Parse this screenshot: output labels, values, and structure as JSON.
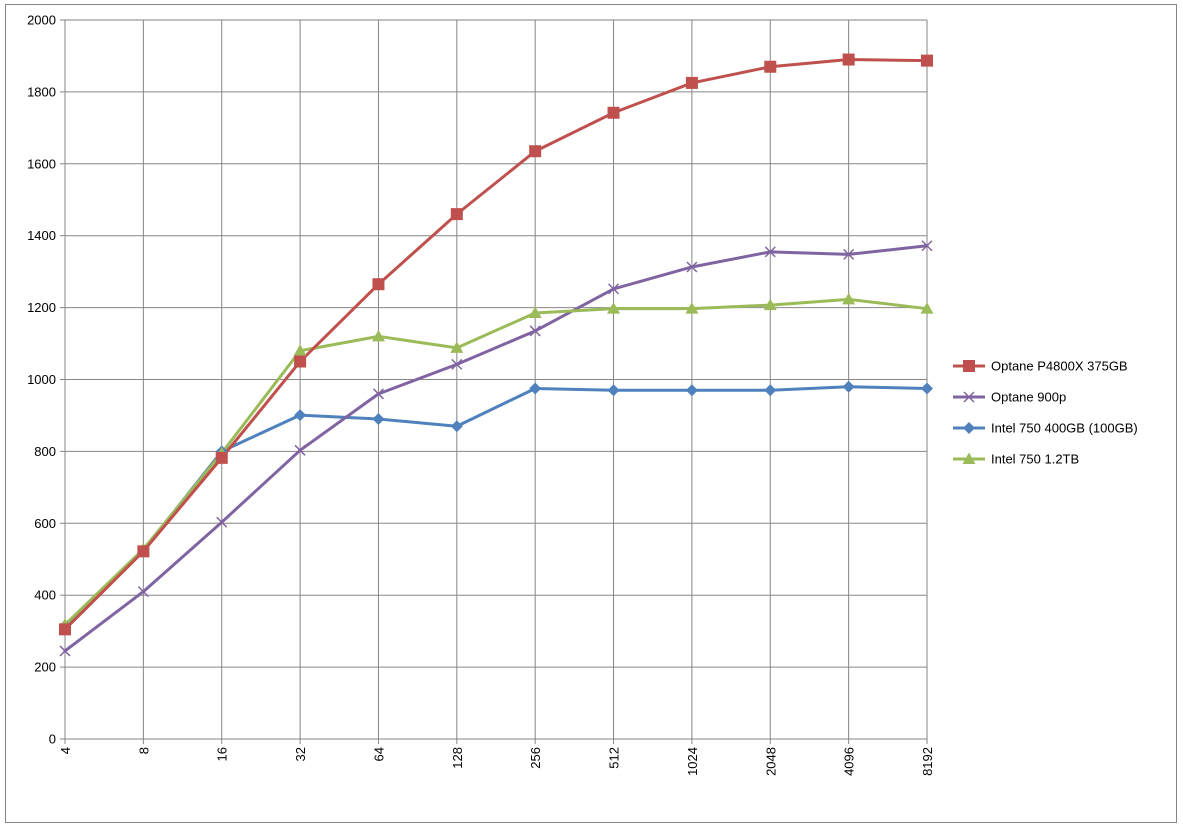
{
  "chart_data": {
    "type": "line",
    "x": [
      "4",
      "8",
      "16",
      "32",
      "64",
      "128",
      "256",
      "512",
      "1024",
      "2048",
      "4096",
      "8192"
    ],
    "ylim": [
      0,
      2000
    ],
    "yticks": [
      0,
      200,
      400,
      600,
      800,
      1000,
      1200,
      1400,
      1600,
      1800,
      2000
    ],
    "grid": true,
    "legend_position": "right",
    "series": [
      {
        "name": "Optane P4800X 375GB",
        "color": "#c0504d",
        "marker": "square",
        "values": [
          305,
          522,
          782,
          1050,
          1265,
          1460,
          1635,
          1742,
          1825,
          1870,
          1890,
          1887
        ]
      },
      {
        "name": "Optane 900p",
        "color": "#8064a2",
        "marker": "x",
        "values": [
          245,
          410,
          603,
          803,
          960,
          1042,
          1135,
          1252,
          1313,
          1355,
          1348,
          1372
        ]
      },
      {
        "name": "Intel 750 400GB (100GB)",
        "color": "#4f81bd",
        "marker": "diamond",
        "values": [
          315,
          525,
          800,
          901,
          890,
          870,
          975,
          970,
          970,
          970,
          980,
          975
        ]
      },
      {
        "name": "Intel 750 1.2TB",
        "color": "#9bbb59",
        "marker": "triangle",
        "values": [
          318,
          528,
          795,
          1080,
          1120,
          1088,
          1185,
          1197,
          1197,
          1207,
          1223,
          1197
        ]
      }
    ]
  }
}
